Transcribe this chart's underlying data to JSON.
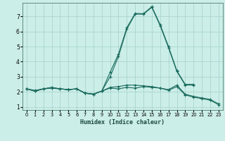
{
  "xlabel": "Humidex (Indice chaleur)",
  "background_color": "#cceee8",
  "grid_color": "#aad4ce",
  "line_color": "#1a6b5e",
  "xlim": [
    -0.5,
    23.5
  ],
  "ylim": [
    0.8,
    7.9
  ],
  "yticks": [
    1,
    2,
    3,
    4,
    5,
    6,
    7
  ],
  "xticks": [
    0,
    1,
    2,
    3,
    4,
    5,
    6,
    7,
    8,
    9,
    10,
    11,
    12,
    13,
    14,
    15,
    16,
    17,
    18,
    19,
    20,
    21,
    22,
    23
  ],
  "series": [
    {
      "x": [
        0,
        1,
        2,
        3,
        4,
        5,
        6,
        7,
        8,
        9,
        10,
        11,
        12,
        13,
        14,
        15,
        16,
        17,
        18,
        19,
        20,
        21,
        22,
        23
      ],
      "y": [
        2.2,
        2.1,
        2.2,
        2.25,
        2.2,
        2.15,
        2.2,
        1.9,
        1.85,
        2.05,
        2.25,
        2.2,
        2.3,
        2.25,
        2.35,
        2.3,
        2.25,
        2.15,
        2.45,
        1.85,
        1.7,
        1.6,
        1.5,
        1.2
      ]
    },
    {
      "x": [
        0,
        1,
        2,
        3,
        4,
        5,
        6,
        7,
        8,
        9,
        10,
        11,
        12,
        13,
        14,
        15,
        16,
        17,
        18,
        19,
        20,
        21,
        22,
        23
      ],
      "y": [
        2.2,
        2.05,
        2.2,
        2.25,
        2.2,
        2.15,
        2.2,
        1.92,
        1.85,
        2.05,
        2.3,
        2.35,
        2.45,
        2.45,
        2.4,
        2.35,
        2.25,
        2.1,
        2.35,
        1.8,
        1.65,
        1.55,
        1.45,
        1.15
      ]
    },
    {
      "x": [
        0,
        1,
        2,
        3,
        4,
        5,
        6,
        7,
        8,
        9,
        10,
        11,
        12,
        13,
        14,
        15,
        16,
        17,
        18,
        19,
        20
      ],
      "y": [
        2.2,
        2.05,
        2.2,
        2.3,
        2.2,
        2.15,
        2.2,
        1.92,
        1.85,
        2.05,
        3.3,
        4.5,
        6.25,
        7.2,
        7.18,
        7.65,
        6.45,
        5.0,
        3.4,
        2.5,
        2.5
      ]
    },
    {
      "x": [
        0,
        1,
        2,
        3,
        4,
        5,
        6,
        7,
        8,
        9,
        10,
        11,
        12,
        13,
        14,
        15,
        16,
        17,
        18,
        19,
        20
      ],
      "y": [
        2.2,
        2.05,
        2.2,
        2.28,
        2.2,
        2.15,
        2.2,
        1.92,
        1.85,
        2.05,
        3.0,
        4.35,
        6.15,
        7.15,
        7.15,
        7.6,
        6.38,
        4.92,
        3.35,
        2.45,
        2.45
      ]
    }
  ]
}
